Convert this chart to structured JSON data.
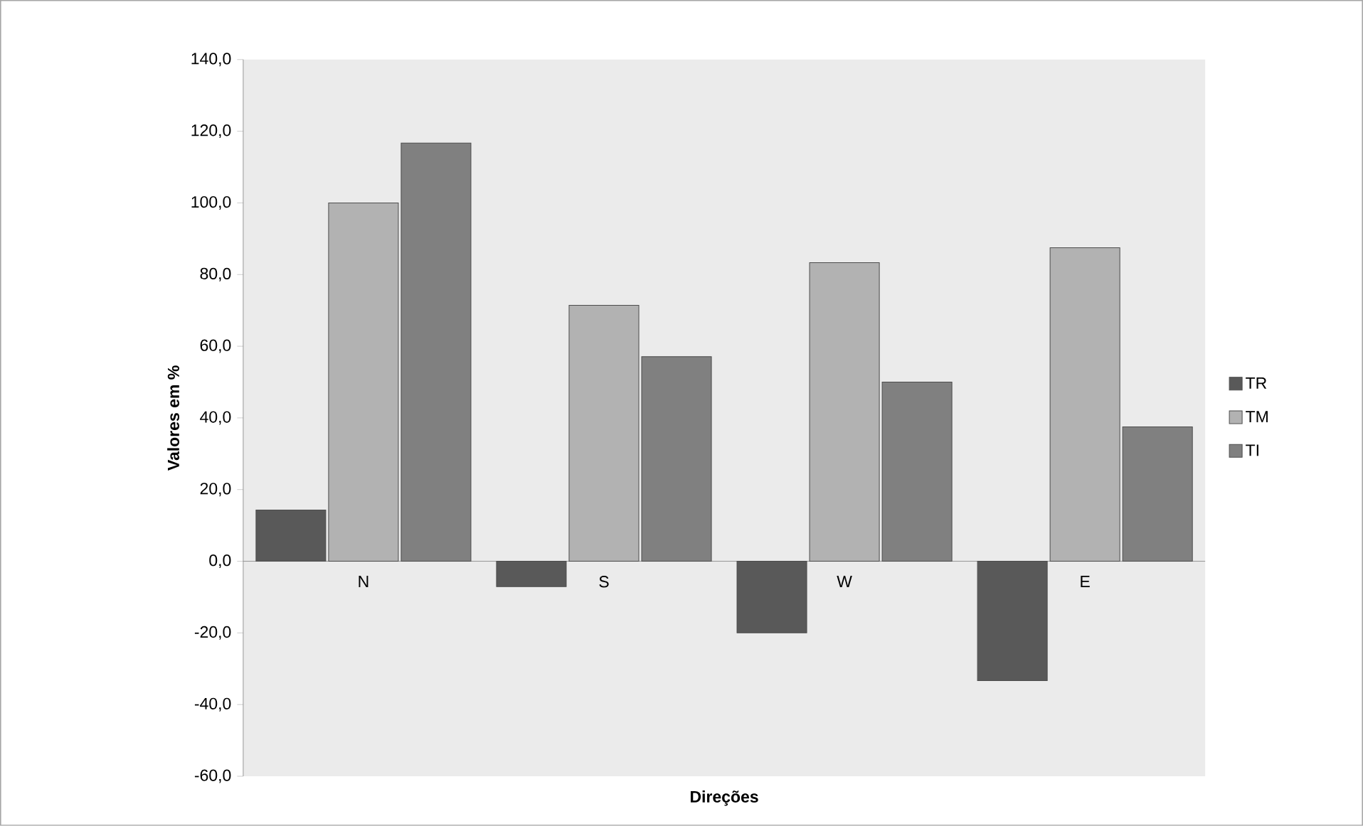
{
  "chart_data": {
    "type": "bar",
    "xlabel": "Direções",
    "ylabel": "Valores em %",
    "categories": [
      "N",
      "S",
      "W",
      "E"
    ],
    "series": [
      {
        "name": "TR",
        "color": "#595959",
        "values": [
          14.3,
          -7.1,
          -20.0,
          -33.3
        ]
      },
      {
        "name": "TM",
        "color": "#b2b2b2",
        "values": [
          100.0,
          71.4,
          83.3,
          87.5
        ]
      },
      {
        "name": "TI",
        "color": "#808080",
        "values": [
          116.7,
          57.1,
          50.0,
          37.5
        ]
      }
    ],
    "ylim": [
      -60,
      140
    ],
    "yticks": [
      {
        "value": -60,
        "label": "-60,0"
      },
      {
        "value": -40,
        "label": "-40,0"
      },
      {
        "value": -20,
        "label": "-20,0"
      },
      {
        "value": 0,
        "label": "0,0"
      },
      {
        "value": 20,
        "label": "20,0"
      },
      {
        "value": 40,
        "label": "40,0"
      },
      {
        "value": 60,
        "label": "60,0"
      },
      {
        "value": 80,
        "label": "80,0"
      },
      {
        "value": 100,
        "label": "100,0"
      },
      {
        "value": 120,
        "label": "120,0"
      },
      {
        "value": 140,
        "label": "140,0"
      }
    ],
    "grid": false,
    "legend": "right"
  }
}
